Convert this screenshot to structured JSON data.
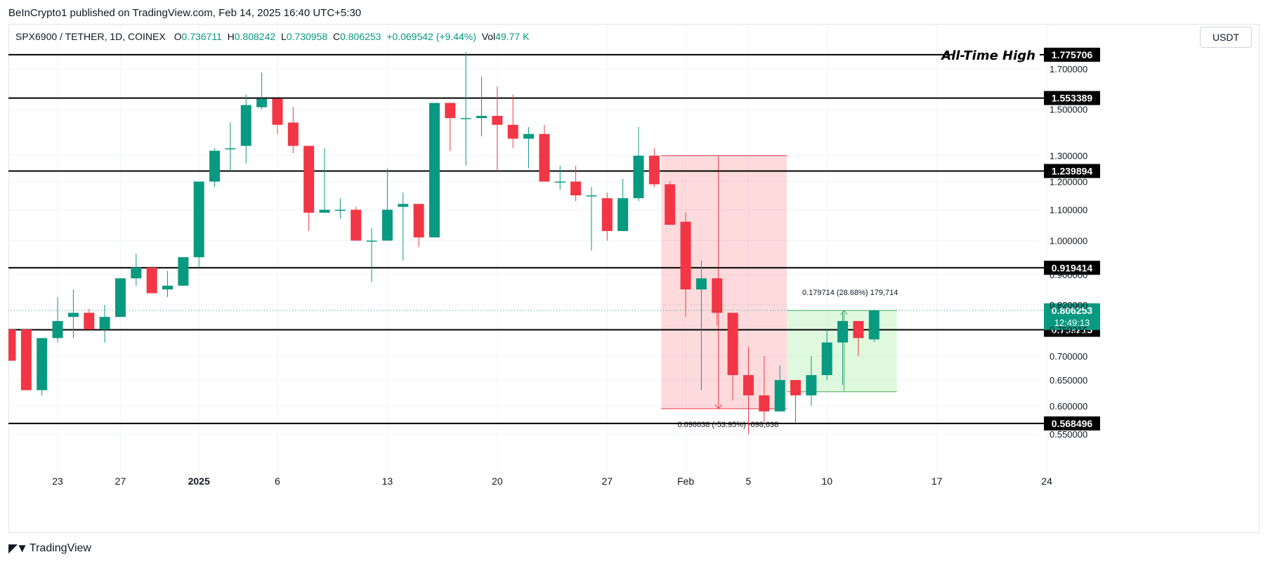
{
  "publish_line": "BeInCrypto1 published on TradingView.com, Feb 14, 2025 16:40 UTC+5:30",
  "legend": {
    "symbol": "SPX6900 / TETHER, 1D, COINEX",
    "o_label": "O",
    "o_value": "0.736711",
    "h_label": "H",
    "h_value": "0.808242",
    "l_label": "L",
    "l_value": "0.730958",
    "c_label": "C",
    "c_value": "0.806253",
    "change": "+0.069542 (+9.44%)",
    "vol_label": "Vol",
    "vol_value": "49.77 K"
  },
  "currency_button": "USDT",
  "footer": {
    "logo_text": "TradingView",
    "logo_icon": "tradingview-logo-icon"
  },
  "colors": {
    "up": "#089981",
    "down": "#f23645",
    "level": "#000000",
    "grid": "#f0f3fa"
  },
  "chart_data": {
    "type": "candlestick",
    "x_tick_labels": [
      "23",
      "27",
      "2025",
      "6",
      "13",
      "20",
      "27",
      "Feb",
      "5",
      "10",
      "17",
      "24"
    ],
    "y_tick_labels": [
      "0.550000",
      "0.600000",
      "0.650000",
      "0.700000",
      "0.759215",
      "0.820000",
      "0.900000",
      "1.000000",
      "1.100000",
      "1.200000",
      "1.300000",
      "1.500000",
      "1.700000"
    ],
    "ylim": [
      0.54,
      1.82
    ],
    "y_scale": "log",
    "candles": [
      {
        "date": "2024-12-20",
        "o": 0.76,
        "h": 0.76,
        "l": 0.69,
        "c": 0.69
      },
      {
        "date": "2024-12-21",
        "o": 0.76,
        "h": 0.76,
        "l": 0.63,
        "c": 0.63
      },
      {
        "date": "2024-12-22",
        "o": 0.63,
        "h": 0.74,
        "l": 0.62,
        "c": 0.74
      },
      {
        "date": "2024-12-23",
        "o": 0.74,
        "h": 0.84,
        "l": 0.73,
        "c": 0.78
      },
      {
        "date": "2024-12-24",
        "o": 0.79,
        "h": 0.86,
        "l": 0.74,
        "c": 0.8
      },
      {
        "date": "2024-12-25",
        "o": 0.8,
        "h": 0.81,
        "l": 0.76,
        "c": 0.76
      },
      {
        "date": "2024-12-26",
        "o": 0.76,
        "h": 0.82,
        "l": 0.73,
        "c": 0.79
      },
      {
        "date": "2024-12-27",
        "o": 0.79,
        "h": 0.89,
        "l": 0.79,
        "c": 0.89
      },
      {
        "date": "2024-12-28",
        "o": 0.89,
        "h": 0.96,
        "l": 0.87,
        "c": 0.92
      },
      {
        "date": "2024-12-29",
        "o": 0.92,
        "h": 0.92,
        "l": 0.85,
        "c": 0.85
      },
      {
        "date": "2024-12-30",
        "o": 0.86,
        "h": 0.91,
        "l": 0.84,
        "c": 0.87
      },
      {
        "date": "2024-12-31",
        "o": 0.87,
        "h": 0.95,
        "l": 0.87,
        "c": 0.95
      },
      {
        "date": "2025-01-01",
        "o": 0.95,
        "h": 1.2,
        "l": 0.92,
        "c": 1.2
      },
      {
        "date": "2025-01-02",
        "o": 1.2,
        "h": 1.33,
        "l": 1.18,
        "c": 1.32
      },
      {
        "date": "2025-01-03",
        "o": 1.33,
        "h": 1.44,
        "l": 1.24,
        "c": 1.33
      },
      {
        "date": "2025-01-04",
        "o": 1.34,
        "h": 1.57,
        "l": 1.27,
        "c": 1.52
      },
      {
        "date": "2025-01-05",
        "o": 1.51,
        "h": 1.68,
        "l": 1.5,
        "c": 1.55
      },
      {
        "date": "2025-01-06",
        "o": 1.55,
        "h": 1.55,
        "l": 1.39,
        "c": 1.43
      },
      {
        "date": "2025-01-07",
        "o": 1.44,
        "h": 1.51,
        "l": 1.31,
        "c": 1.34
      },
      {
        "date": "2025-01-08",
        "o": 1.34,
        "h": 1.34,
        "l": 1.03,
        "c": 1.09
      },
      {
        "date": "2025-01-09",
        "o": 1.09,
        "h": 1.33,
        "l": 1.09,
        "c": 1.1
      },
      {
        "date": "2025-01-10",
        "o": 1.1,
        "h": 1.14,
        "l": 1.07,
        "c": 1.1
      },
      {
        "date": "2025-01-11",
        "o": 1.1,
        "h": 1.11,
        "l": 1.0,
        "c": 1.0
      },
      {
        "date": "2025-01-12",
        "o": 1.0,
        "h": 1.04,
        "l": 0.88,
        "c": 1.0
      },
      {
        "date": "2025-01-13",
        "o": 1.0,
        "h": 1.25,
        "l": 1.0,
        "c": 1.1
      },
      {
        "date": "2025-01-14",
        "o": 1.11,
        "h": 1.16,
        "l": 0.94,
        "c": 1.12
      },
      {
        "date": "2025-01-15",
        "o": 1.12,
        "h": 1.12,
        "l": 0.98,
        "c": 1.01
      },
      {
        "date": "2025-01-16",
        "o": 1.01,
        "h": 1.53,
        "l": 1.01,
        "c": 1.53
      },
      {
        "date": "2025-01-17",
        "o": 1.53,
        "h": 1.53,
        "l": 1.32,
        "c": 1.46
      },
      {
        "date": "2025-01-18",
        "o": 1.46,
        "h": 1.79,
        "l": 1.26,
        "c": 1.46
      },
      {
        "date": "2025-01-19",
        "o": 1.46,
        "h": 1.66,
        "l": 1.38,
        "c": 1.47
      },
      {
        "date": "2025-01-20",
        "o": 1.47,
        "h": 1.61,
        "l": 1.24,
        "c": 1.43
      },
      {
        "date": "2025-01-21",
        "o": 1.43,
        "h": 1.57,
        "l": 1.33,
        "c": 1.37
      },
      {
        "date": "2025-01-22",
        "o": 1.37,
        "h": 1.42,
        "l": 1.25,
        "c": 1.39
      },
      {
        "date": "2025-01-23",
        "o": 1.39,
        "h": 1.43,
        "l": 1.2,
        "c": 1.2
      },
      {
        "date": "2025-01-24",
        "o": 1.2,
        "h": 1.26,
        "l": 1.17,
        "c": 1.2
      },
      {
        "date": "2025-01-25",
        "o": 1.2,
        "h": 1.26,
        "l": 1.13,
        "c": 1.15
      },
      {
        "date": "2025-01-26",
        "o": 1.15,
        "h": 1.18,
        "l": 0.97,
        "c": 1.15
      },
      {
        "date": "2025-01-27",
        "o": 1.14,
        "h": 1.16,
        "l": 1.0,
        "c": 1.03
      },
      {
        "date": "2025-01-28",
        "o": 1.03,
        "h": 1.21,
        "l": 1.03,
        "c": 1.14
      },
      {
        "date": "2025-01-29",
        "o": 1.14,
        "h": 1.42,
        "l": 1.13,
        "c": 1.3
      },
      {
        "date": "2025-01-30",
        "o": 1.3,
        "h": 1.33,
        "l": 1.18,
        "c": 1.19
      },
      {
        "date": "2025-01-31",
        "o": 1.19,
        "h": 1.2,
        "l": 1.05,
        "c": 1.05
      },
      {
        "date": "2025-02-01",
        "o": 1.06,
        "h": 1.09,
        "l": 0.79,
        "c": 0.86
      },
      {
        "date": "2025-02-02",
        "o": 0.86,
        "h": 0.94,
        "l": 0.63,
        "c": 0.89
      },
      {
        "date": "2025-02-03",
        "o": 0.89,
        "h": 0.89,
        "l": 0.77,
        "c": 0.8
      },
      {
        "date": "2025-02-04",
        "o": 0.8,
        "h": 0.8,
        "l": 0.61,
        "c": 0.66
      },
      {
        "date": "2025-02-05",
        "o": 0.66,
        "h": 0.72,
        "l": 0.55,
        "c": 0.62
      },
      {
        "date": "2025-02-06",
        "o": 0.62,
        "h": 0.7,
        "l": 0.57,
        "c": 0.59
      },
      {
        "date": "2025-02-07",
        "o": 0.59,
        "h": 0.68,
        "l": 0.59,
        "c": 0.65
      },
      {
        "date": "2025-02-08",
        "o": 0.65,
        "h": 0.65,
        "l": 0.57,
        "c": 0.62
      },
      {
        "date": "2025-02-09",
        "o": 0.62,
        "h": 0.7,
        "l": 0.6,
        "c": 0.66
      },
      {
        "date": "2025-02-10",
        "o": 0.66,
        "h": 0.76,
        "l": 0.65,
        "c": 0.73
      },
      {
        "date": "2025-02-11",
        "o": 0.73,
        "h": 0.8,
        "l": 0.64,
        "c": 0.78
      },
      {
        "date": "2025-02-12",
        "o": 0.78,
        "h": 0.78,
        "l": 0.7,
        "c": 0.74
      },
      {
        "date": "2025-02-13",
        "o": 0.737,
        "h": 0.808,
        "l": 0.731,
        "c": 0.806
      }
    ],
    "levels": [
      {
        "value": 1.775706,
        "label": "1.775706",
        "annotation": "All-Time High"
      },
      {
        "value": 1.553389,
        "label": "1.553389"
      },
      {
        "value": 1.239894,
        "label": "1.239894"
      },
      {
        "value": 0.919414,
        "label": "0.919414"
      },
      {
        "value": 0.759215,
        "label": "0.759215"
      },
      {
        "value": 0.568496,
        "label": "0.568496"
      }
    ],
    "last_price": {
      "value": 0.806253,
      "label": "0.806253",
      "countdown": "12:49:13"
    },
    "measures": [
      {
        "kind": "drop",
        "from_date": "2025-01-30",
        "to_date": "2025-02-07",
        "top": 1.3,
        "bottom": 0.595,
        "arrow_date": "2025-02-03",
        "label": "0.698638 (-53.95%) -698,638"
      },
      {
        "kind": "rise",
        "from_date": "2025-02-07",
        "to_date": "2025-02-14",
        "top": 0.806,
        "bottom": 0.627,
        "arrow_date": "2025-02-11",
        "label": "0.179714 (28.68%) 179,714"
      }
    ]
  }
}
